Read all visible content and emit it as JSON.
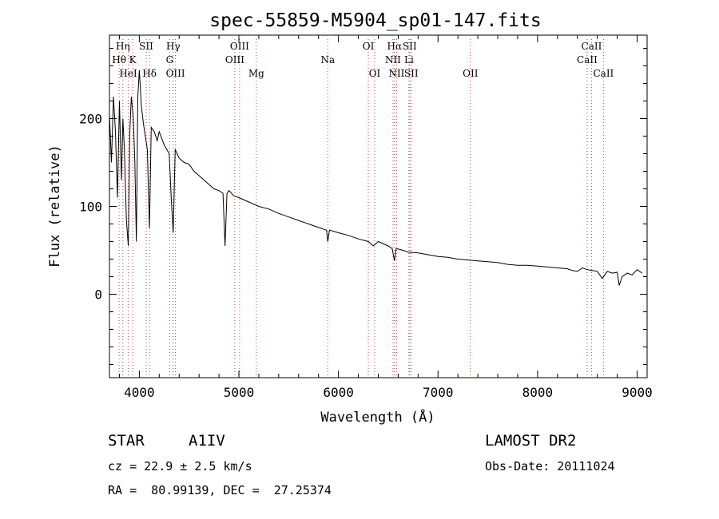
{
  "chart_data": {
    "type": "line",
    "title": "spec-55859-M5904_sp01-147.fits",
    "xlabel": "Wavelength (Å)",
    "ylabel": "Flux (relative)",
    "xlim": [
      3700,
      9100
    ],
    "ylim": [
      -95,
      295
    ],
    "xticks": [
      4000,
      5000,
      6000,
      7000,
      8000,
      9000
    ],
    "yticks": [
      0,
      100,
      200
    ],
    "grid": false,
    "series": [
      {
        "x": [
          3700,
          3720,
          3740,
          3760,
          3780,
          3800,
          3820,
          3835,
          3850,
          3870,
          3889,
          3905,
          3920,
          3940,
          3955,
          3970,
          3985,
          4000,
          4020,
          4040,
          4060,
          4080,
          4102,
          4120,
          4150,
          4180,
          4200,
          4250,
          4300,
          4320,
          4340,
          4360,
          4380,
          4400,
          4450,
          4500,
          4550,
          4600,
          4650,
          4700,
          4750,
          4800,
          4840,
          4861,
          4880,
          4900,
          4950,
          5000,
          5100,
          5200,
          5300,
          5400,
          5500,
          5600,
          5700,
          5800,
          5880,
          5893,
          5910,
          6000,
          6100,
          6200,
          6300,
          6350,
          6400,
          6500,
          6540,
          6563,
          6580,
          6650,
          6700,
          6800,
          6900,
          7000,
          7100,
          7200,
          7300,
          7400,
          7500,
          7600,
          7700,
          7800,
          7900,
          8000,
          8100,
          8200,
          8300,
          8350,
          8400,
          8450,
          8500,
          8550,
          8600,
          8650,
          8700,
          8750,
          8800,
          8820,
          8850,
          8900,
          8950,
          9000,
          9050
        ],
        "values": [
          205,
          150,
          225,
          185,
          110,
          220,
          130,
          200,
          165,
          85,
          55,
          185,
          225,
          200,
          150,
          60,
          225,
          255,
          215,
          195,
          180,
          165,
          75,
          190,
          185,
          175,
          185,
          170,
          160,
          110,
          70,
          165,
          160,
          155,
          150,
          148,
          140,
          135,
          130,
          125,
          120,
          118,
          115,
          55,
          115,
          118,
          112,
          110,
          105,
          100,
          97,
          92,
          88,
          84,
          80,
          76,
          73,
          60,
          73,
          70,
          67,
          63,
          60,
          55,
          60,
          55,
          52,
          38,
          52,
          50,
          48,
          47,
          45,
          43,
          42,
          40,
          39,
          38,
          37,
          36,
          34,
          33,
          33,
          32,
          31,
          30,
          29,
          27,
          26,
          30,
          28,
          27,
          26,
          18,
          26,
          24,
          25,
          10,
          20,
          24,
          22,
          28,
          24
        ]
      }
    ],
    "spectral_lines": [
      {
        "label": "Hη",
        "wavelength": 3835,
        "row": 1
      },
      {
        "label": "Hθ",
        "wavelength": 3797,
        "row": 2
      },
      {
        "label": "K",
        "wavelength": 3934,
        "row": 2
      },
      {
        "label": "HeI",
        "wavelength": 3889,
        "row": 3
      },
      {
        "label": "SII",
        "wavelength": 4069,
        "row": 1
      },
      {
        "label": "Hδ",
        "wavelength": 4102,
        "row": 3
      },
      {
        "label": "Hγ",
        "wavelength": 4340,
        "row": 1
      },
      {
        "label": "G",
        "wavelength": 4305,
        "row": 2
      },
      {
        "label": "OIII",
        "wavelength": 4363,
        "row": 3
      },
      {
        "label": "OIII",
        "wavelength": 5007,
        "row": 1
      },
      {
        "label": "OIII",
        "wavelength": 4959,
        "row": 2
      },
      {
        "label": "Mg",
        "wavelength": 5175,
        "row": 3
      },
      {
        "label": "Na",
        "wavelength": 5893,
        "row": 2
      },
      {
        "label": "OI",
        "wavelength": 6300,
        "row": 1
      },
      {
        "label": "OI",
        "wavelength": 6364,
        "row": 3
      },
      {
        "label": "Hα",
        "wavelength": 6563,
        "row": 1
      },
      {
        "label": "SII",
        "wavelength": 6716,
        "row": 1
      },
      {
        "label": "NII",
        "wavelength": 6548,
        "row": 2
      },
      {
        "label": "Li",
        "wavelength": 6708,
        "row": 2
      },
      {
        "label": "NII",
        "wavelength": 6584,
        "row": 3
      },
      {
        "label": "SII",
        "wavelength": 6731,
        "row": 3
      },
      {
        "label": "OII",
        "wavelength": 7325,
        "row": 3
      },
      {
        "label": "CaII",
        "wavelength": 8542,
        "row": 1
      },
      {
        "label": "CaII",
        "wavelength": 8498,
        "row": 2
      },
      {
        "label": "CaII",
        "wavelength": 8662,
        "row": 3
      }
    ]
  },
  "info": {
    "object_class": "STAR",
    "subclass": "A1IV",
    "redshift": "cz = 22.9 ± 2.5 km/s",
    "coords": "RA =  80.99139, DEC =  27.25374",
    "survey": "LAMOST DR2",
    "obs_date": "Obs-Date: 20111024"
  }
}
